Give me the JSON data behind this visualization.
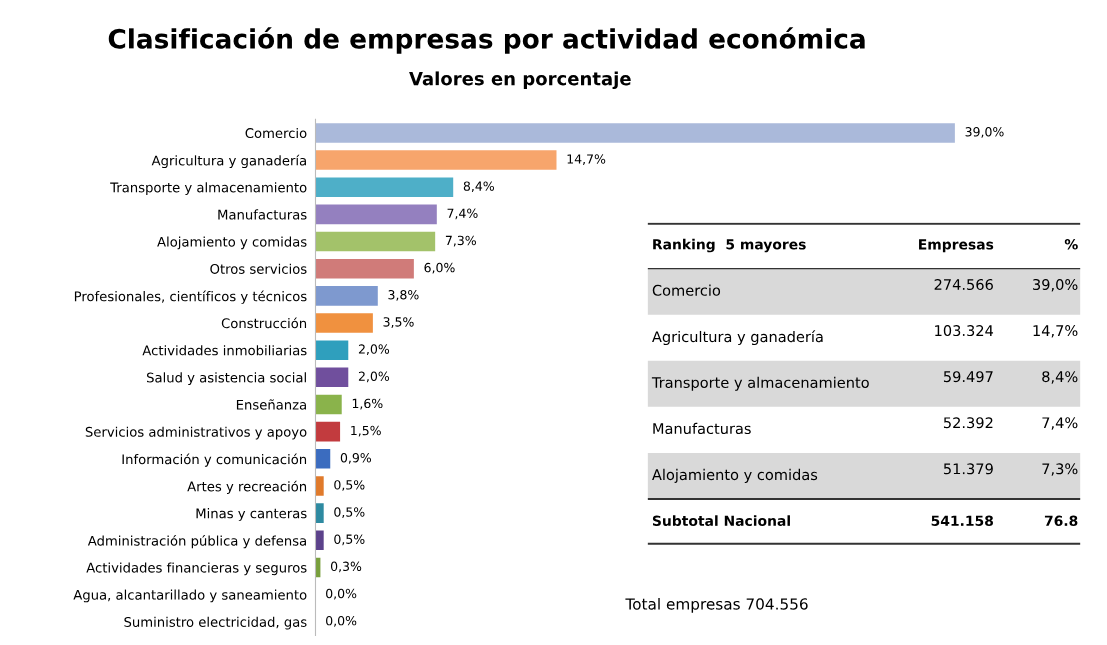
{
  "chart_data": [
    {
      "type": "bar",
      "orientation": "horizontal",
      "title": "Clasificación de empresas por actividad económica",
      "subtitle": "Valores en porcentaje",
      "categories": [
        "Comercio",
        "Agricultura y ganadería",
        "Transporte y almacenamiento",
        "Manufacturas",
        "Alojamiento y comidas",
        "Otros servicios",
        "Profesionales, científicos y técnicos",
        "Construcción",
        "Actividades inmobiliarias",
        "Salud y asistencia social",
        "Enseñanza",
        "Servicios administrativos y apoyo",
        "Información y comunicación",
        "Artes y recreación",
        "Minas y canteras",
        "Administración pública y defensa",
        "Actividades financieras y seguros",
        "Agua, alcantarillado y saneamiento",
        "Suministro electricidad, gas"
      ],
      "values": [
        39.0,
        14.7,
        8.4,
        7.4,
        7.3,
        6.0,
        3.8,
        3.5,
        2.0,
        2.0,
        1.6,
        1.5,
        0.9,
        0.5,
        0.5,
        0.5,
        0.3,
        0.0,
        0.0
      ],
      "value_labels": [
        "39,0%",
        "14,7%",
        "8,4%",
        "7,4%",
        "7,3%",
        "6,0%",
        "3,8%",
        "3,5%",
        "2,0%",
        "2,0%",
        "1,6%",
        "1,5%",
        "0,9%",
        "0,5%",
        "0,5%",
        "0,5%",
        "0,3%",
        "0,0%",
        "0,0%"
      ],
      "colors": [
        "#aab9da",
        "#f7a56c",
        "#4eafc8",
        "#9480bf",
        "#a3c26a",
        "#d07b79",
        "#7e99cf",
        "#f0913f",
        "#2f9fbd",
        "#704f9d",
        "#8ab34b",
        "#c23b3e",
        "#3b6cbf",
        "#e07a2b",
        "#2e8aa1",
        "#5c428b",
        "#789f3c",
        "#c8c8dc",
        "#c8c8dc"
      ],
      "annotations": [
        "Total empresas 704.556"
      ],
      "legend": false,
      "grid": false
    },
    {
      "type": "other",
      "annotations": [
        "Ranking  5 mayores",
        "Empresas",
        "%",
        "Comercio",
        "274.566",
        "39,0%",
        "Agricultura y ganadería",
        "103.324",
        "14,7%",
        "Transporte y almacenamiento",
        "59.497",
        "8,4%",
        "Manufacturas",
        "52.392",
        "7,4%",
        "Alojamiento y comidas",
        "51.379",
        "7,3%",
        "Subtotal Nacional",
        "541.158",
        "76.8"
      ]
    }
  ]
}
